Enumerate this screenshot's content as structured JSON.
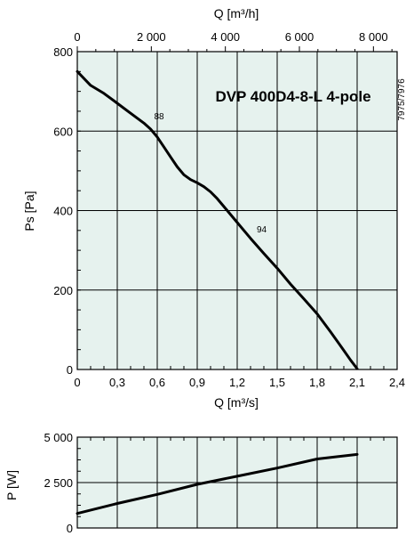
{
  "chart_data": [
    {
      "type": "line",
      "title": "DVP 400D4-8-L 4-pole",
      "code": "7975/7976",
      "xlabel": "Q [m³/s]",
      "xlabel_top": "Q [m³/h]",
      "ylabel": "Ps [Pa]",
      "xlim": [
        0,
        2.4
      ],
      "xlim_top": [
        0,
        8640
      ],
      "ylim": [
        0,
        800
      ],
      "x_ticks": [
        "0",
        "0,3",
        "0,6",
        "0,9",
        "1,2",
        "1,5",
        "1,8",
        "2,1",
        "2,4"
      ],
      "x_ticks_top": [
        "0",
        "2 000",
        "4 000",
        "6 000",
        "8 000"
      ],
      "y_ticks": [
        "0",
        "200",
        "400",
        "600",
        "800"
      ],
      "grid": true,
      "colors": {
        "plot_background": "#e6f2ee",
        "grid": "#000000",
        "curve": "#000000"
      },
      "annotations": [
        {
          "text": "88",
          "x": 0.6,
          "y": 630
        },
        {
          "text": "94",
          "x": 1.37,
          "y": 345
        }
      ],
      "series": [
        {
          "x": [
            0,
            0.1,
            0.2,
            0.3,
            0.4,
            0.5,
            0.55,
            0.6,
            0.65,
            0.7,
            0.75,
            0.8,
            0.85,
            0.9,
            0.95,
            1.0,
            1.05,
            1.1,
            1.2,
            1.3,
            1.4,
            1.5,
            1.6,
            1.7,
            1.8,
            1.9,
            2.0,
            2.05,
            2.1
          ],
          "y": [
            750,
            715,
            695,
            670,
            645,
            620,
            605,
            585,
            560,
            535,
            510,
            490,
            478,
            470,
            460,
            447,
            430,
            410,
            370,
            330,
            292,
            255,
            215,
            178,
            140,
            95,
            48,
            24,
            2
          ]
        }
      ]
    },
    {
      "type": "line",
      "ylabel": "P [W]",
      "xlim": [
        0,
        2.4
      ],
      "ylim": [
        0,
        5000
      ],
      "y_ticks": [
        "0",
        "2 500",
        "5 000"
      ],
      "grid": true,
      "colors": {
        "plot_background": "#e6f2ee",
        "grid": "#000000",
        "curve": "#000000"
      },
      "series": [
        {
          "x": [
            0,
            0.3,
            0.6,
            0.9,
            1.2,
            1.5,
            1.8,
            2.1
          ],
          "y": [
            800,
            1350,
            1850,
            2400,
            2850,
            3300,
            3800,
            4050
          ]
        }
      ]
    }
  ]
}
